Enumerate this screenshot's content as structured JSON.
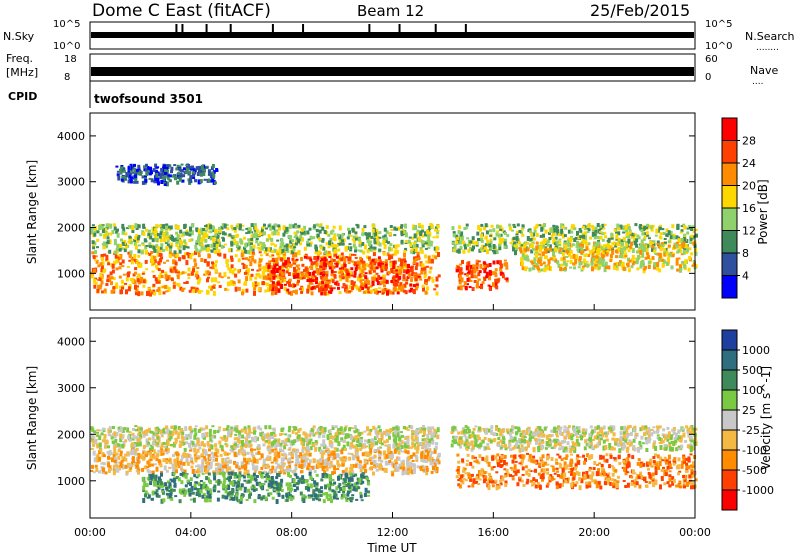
{
  "header": {
    "radar": "Dome C East (fitACF)",
    "beam": "Beam 12",
    "date": "25/Feb/2015"
  },
  "panels": {
    "nsky": {
      "label": "N.Sky",
      "tick_top": "10^5",
      "tick_bottom": "10^0",
      "right_label": "N.Search",
      "right_tick_top": "10^5",
      "right_tick_bottom": "10^0"
    },
    "freq": {
      "label_line1": "Freq.",
      "label_line2": "[MHz]",
      "tick_top": "18",
      "tick_bottom": "8",
      "right_label": "Nave",
      "right_tick_top": "60",
      "right_tick_bottom": "0"
    },
    "cpid": {
      "label": "CPID",
      "value": "twofsound 3501"
    }
  },
  "colorbars": {
    "power": {
      "title": "Power [dB]",
      "labels": [
        "28",
        "24",
        "20",
        "16",
        "12",
        "8",
        "4"
      ],
      "colors": [
        "#ff0000",
        "#ff4000",
        "#ff8c00",
        "#ffd700",
        "#8fd16b",
        "#3e8a5a",
        "#2f4f9f",
        "#0000ff"
      ]
    },
    "velocity": {
      "title": "Velocity [m s^-1]",
      "labels": [
        "1000",
        "500",
        "100",
        "25",
        "-25",
        "-100",
        "-500",
        "-1000"
      ],
      "colors": [
        "#1f3fa0",
        "#2e6e7e",
        "#3e8a5a",
        "#7ac943",
        "#c8c8c8",
        "#f4b942",
        "#ff8c00",
        "#ff4000",
        "#ff0000"
      ]
    }
  },
  "chart_data": [
    {
      "type": "heatmap",
      "name": "power",
      "ylabel": "Slant Range [km]",
      "yticks": [
        1000,
        2000,
        3000,
        4000
      ],
      "ylim": [
        200,
        4500
      ],
      "xlim": [
        0,
        24
      ],
      "xticks": [
        "00:00",
        "04:00",
        "08:00",
        "12:00",
        "16:00",
        "20:00",
        "00:00"
      ],
      "bands": [
        {
          "x": [
            0,
            14
          ],
          "y": [
            600,
            1500
          ],
          "level": 5
        },
        {
          "x": [
            0,
            24
          ],
          "y": [
            1500,
            2100
          ],
          "level": 3
        },
        {
          "x": [
            7,
            13
          ],
          "y": [
            600,
            1400
          ],
          "level": 6
        },
        {
          "x": [
            14.5,
            16.5
          ],
          "y": [
            700,
            1300
          ],
          "level": 6
        },
        {
          "x": [
            17,
            24
          ],
          "y": [
            1100,
            1700
          ],
          "level": 4
        },
        {
          "x": [
            1,
            5
          ],
          "y": [
            3000,
            3400
          ],
          "level": 1
        }
      ],
      "gap_x": [
        13.8,
        14.3
      ]
    },
    {
      "type": "heatmap",
      "name": "velocity",
      "ylabel": "Slant Range [km]",
      "yticks": [
        1000,
        2000,
        3000,
        4000
      ],
      "ylim": [
        200,
        4500
      ],
      "xlim": [
        0,
        24
      ],
      "xticks": [
        "00:00",
        "04:00",
        "08:00",
        "12:00",
        "16:00",
        "20:00",
        "00:00"
      ],
      "xlabel": "Time UT",
      "bands": [
        {
          "x": [
            0,
            24
          ],
          "y": [
            1700,
            2200
          ],
          "level": 4
        },
        {
          "x": [
            0,
            14
          ],
          "y": [
            1200,
            1700
          ],
          "level": 3
        },
        {
          "x": [
            2,
            11
          ],
          "y": [
            600,
            1200
          ],
          "level": 6
        },
        {
          "x": [
            14.5,
            24
          ],
          "y": [
            900,
            1600
          ],
          "level": 2
        }
      ],
      "gap_x": [
        13.8,
        14.3
      ]
    }
  ]
}
